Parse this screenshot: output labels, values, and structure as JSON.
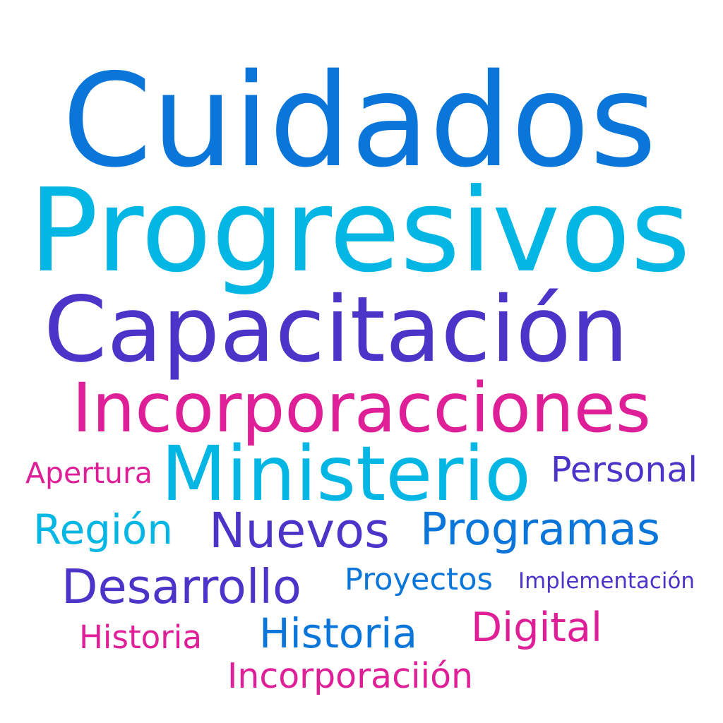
{
  "colors": {
    "blue": "#0b76d9",
    "cyan": "#04b6e3",
    "indigo": "#4c34c9",
    "magenta": "#de1f97"
  },
  "words": [
    {
      "text": "Cuidados",
      "color": "#0b76d9"
    },
    {
      "text": "Progresivos",
      "color": "#04b6e3"
    },
    {
      "text": "Capacitación",
      "color": "#4c34c9"
    },
    {
      "text": "Incorporacciones",
      "color": "#de1f97"
    },
    {
      "text": "Ministerio",
      "color": "#04b6e3"
    },
    {
      "text": "Apertura",
      "color": "#de1f97"
    },
    {
      "text": "Personal",
      "color": "#4c34c9"
    },
    {
      "text": "Región",
      "color": "#04b6e3"
    },
    {
      "text": "Nuevos",
      "color": "#4c34c9"
    },
    {
      "text": "Programas",
      "color": "#0b76d9"
    },
    {
      "text": "Desarrollo",
      "color": "#4c34c9"
    },
    {
      "text": "Proyectos",
      "color": "#0b76d9"
    },
    {
      "text": "Implementación",
      "color": "#4c34c9"
    },
    {
      "text": "Historia",
      "color": "#de1f97"
    },
    {
      "text": "Historia",
      "color": "#0b76d9"
    },
    {
      "text": "Digital",
      "color": "#de1f97"
    },
    {
      "text": "Incorporaciión",
      "color": "#de1f97"
    }
  ]
}
